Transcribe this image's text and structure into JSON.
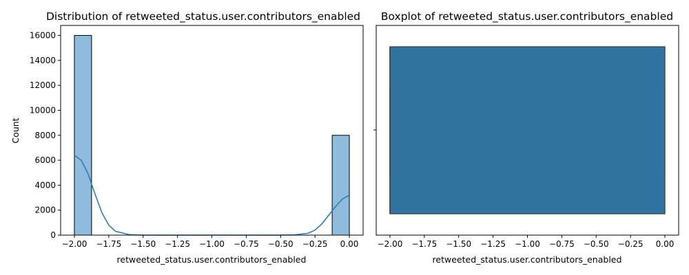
{
  "chart_data": [
    {
      "type": "histogram",
      "title": "Distribution of retweeted_status.user.contributors_enabled",
      "xlabel": "retweeted_status.user.contributors_enabled",
      "ylabel": "Count",
      "xlim": [
        -2.1,
        0.1
      ],
      "ylim": [
        0,
        16800
      ],
      "xticks": [
        -2.0,
        -1.75,
        -1.5,
        -1.25,
        -1.0,
        -0.75,
        -0.5,
        -0.25,
        0.0
      ],
      "xtick_labels": [
        "−2.00",
        "−1.75",
        "−1.50",
        "−1.25",
        "−1.00",
        "−0.75",
        "−0.50",
        "−0.25",
        "0.00"
      ],
      "yticks": [
        0,
        2000,
        4000,
        6000,
        8000,
        10000,
        12000,
        14000,
        16000
      ],
      "ytick_labels": [
        "0",
        "2000",
        "4000",
        "6000",
        "8000",
        "10000",
        "12000",
        "14000",
        "16000"
      ],
      "bins": [
        {
          "x0": -2.0,
          "x1": -1.875,
          "count": 16000
        },
        {
          "x0": -0.125,
          "x1": 0.0,
          "count": 8000
        }
      ],
      "kde": {
        "x": [
          -2.0,
          -1.95,
          -1.9,
          -1.85,
          -1.8,
          -1.75,
          -1.7,
          -1.6,
          -1.5,
          -1.0,
          -0.5,
          -0.4,
          -0.3,
          -0.25,
          -0.2,
          -0.15,
          -0.1,
          -0.05,
          0.0
        ],
        "y": [
          6400,
          6000,
          4900,
          3300,
          1800,
          800,
          300,
          40,
          0,
          0,
          0,
          20,
          150,
          400,
          900,
          1600,
          2300,
          2900,
          3200
        ]
      },
      "bar_color": "#8fbcdc",
      "line_color": "#2f7bb6",
      "grid": false
    },
    {
      "type": "boxplot",
      "title": "Boxplot of retweeted_status.user.contributors_enabled",
      "xlabel": "retweeted_status.user.contributors_enabled",
      "xlim": [
        -2.1,
        0.1
      ],
      "xticks": [
        -2.0,
        -1.75,
        -1.5,
        -1.25,
        -1.0,
        -0.75,
        -0.5,
        -0.25,
        0.0
      ],
      "xtick_labels": [
        "−2.00",
        "−1.75",
        "−1.50",
        "−1.25",
        "−1.00",
        "−0.75",
        "−0.50",
        "−0.25",
        "0.00"
      ],
      "box": {
        "min": -2.0,
        "q1": -2.0,
        "median": -2.0,
        "q3": 0.0,
        "max": 0.0
      },
      "box_color": "#3274a1",
      "grid": false
    }
  ]
}
